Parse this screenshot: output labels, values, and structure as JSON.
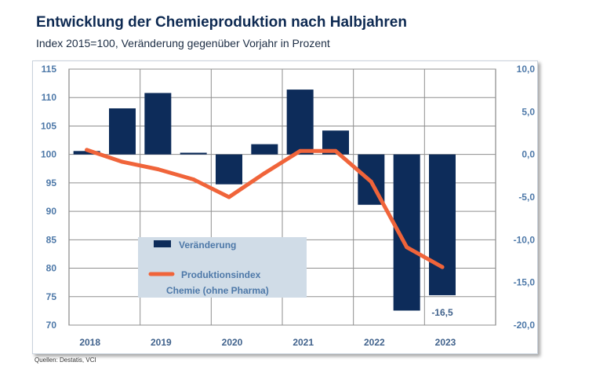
{
  "title": "Entwicklung der Chemieproduktion nach Halbjahren",
  "subtitle": "Index 2015=100, Veränderung gegenüber Vorjahr in Prozent",
  "source": "Quellen: Destatis, VCI",
  "colors": {
    "bar": "#0d2c5a",
    "line": "#f0643a",
    "legend_bg": "#d0dce7",
    "grid": "#8f8f8f"
  },
  "chart_data": {
    "type": "bar",
    "title": "Entwicklung der Chemieproduktion nach Halbjahren",
    "xlabel": "",
    "ylabel_left": "Index 2015=100",
    "ylabel_right": "Veränderung gegenüber Vorjahr in Prozent",
    "year_labels": [
      "2018",
      "2019",
      "2020",
      "2021",
      "2022",
      "2023"
    ],
    "categories": [
      "2018 H1",
      "2018 H2",
      "2019 H1",
      "2019 H2",
      "2020 H1",
      "2020 H2",
      "2021 H1",
      "2021 H2",
      "2022 H1",
      "2022 H2",
      "2023 H1"
    ],
    "y_left": {
      "min": 70,
      "max": 115,
      "ticks": [
        "70",
        "75",
        "80",
        "85",
        "90",
        "95",
        "100",
        "105",
        "110",
        "115"
      ]
    },
    "y_right": {
      "min": -20,
      "max": 10,
      "ticks": [
        "-20,0",
        "-15,0",
        "-10,0",
        "-5,0",
        "0,0",
        "5,0",
        "10,0"
      ]
    },
    "series": [
      {
        "name": "Veränderung",
        "type": "bar",
        "axis": "right",
        "values": [
          0.4,
          5.4,
          7.2,
          0.2,
          -3.5,
          1.2,
          7.6,
          2.8,
          -5.9,
          -18.3,
          -16.5
        ]
      },
      {
        "name": "Produktionsindex Chemie (ohne Pharma)",
        "type": "line",
        "axis": "left",
        "values": [
          100.8,
          98.7,
          97.4,
          95.6,
          92.5,
          96.7,
          100.6,
          100.6,
          95.2,
          83.7,
          80.2
        ]
      }
    ],
    "annotations": [
      {
        "category": "2023 H1",
        "text": "-16,5"
      }
    ],
    "legend": {
      "placement": "bottom-left",
      "items": [
        "Veränderung",
        "Produktionsindex",
        "Chemie (ohne Pharma)"
      ]
    }
  }
}
